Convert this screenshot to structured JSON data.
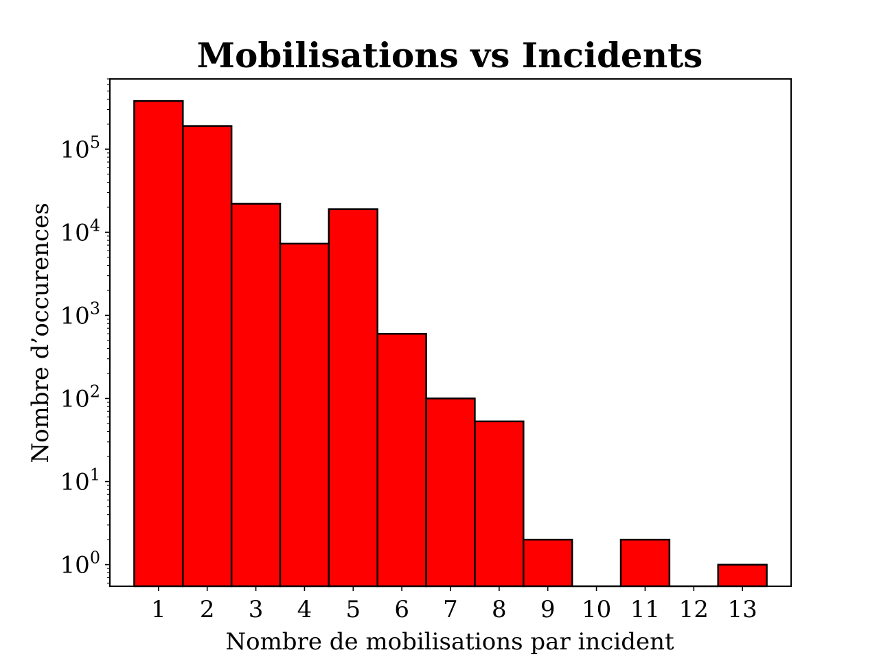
{
  "chart_data": {
    "type": "bar",
    "title": "Mobilisations vs Incidents",
    "xlabel": "Nombre de mobilisations par incident",
    "ylabel": "Nombre d’occurences",
    "y_scale": "log",
    "ylim": [
      0.55,
      700000
    ],
    "xlim": [
      0.0,
      14.0
    ],
    "categories": [
      "1",
      "2",
      "3",
      "4",
      "5",
      "6",
      "7",
      "8",
      "9",
      "10",
      "11",
      "12",
      "13"
    ],
    "x": [
      1,
      2,
      3,
      4,
      5,
      6,
      7,
      8,
      9,
      10,
      11,
      12,
      13
    ],
    "values": [
      380000,
      190000,
      22000,
      7300,
      19000,
      600,
      100,
      53,
      2,
      0,
      2,
      0,
      1
    ],
    "y_ticks": [
      {
        "value": 1,
        "base": "10",
        "exp": "0"
      },
      {
        "value": 10,
        "base": "10",
        "exp": "1"
      },
      {
        "value": 100,
        "base": "10",
        "exp": "2"
      },
      {
        "value": 1000,
        "base": "10",
        "exp": "3"
      },
      {
        "value": 10000,
        "base": "10",
        "exp": "4"
      },
      {
        "value": 100000,
        "base": "10",
        "exp": "5"
      }
    ],
    "grid": false,
    "legend": "none",
    "colors": {
      "bar_fill": "#ff0000",
      "bar_edge": "#000000",
      "axis": "#000000"
    }
  }
}
